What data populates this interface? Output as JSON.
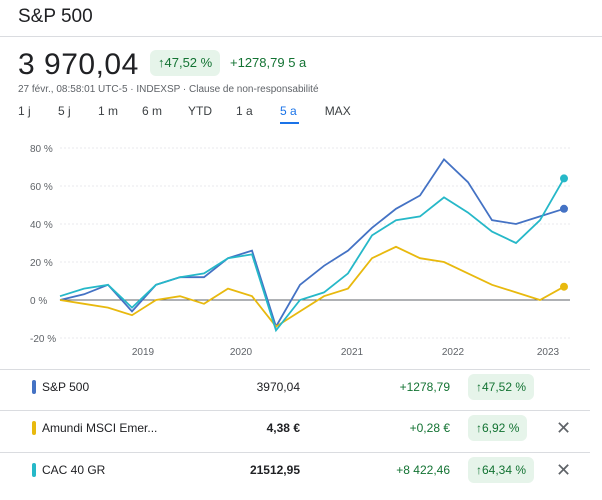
{
  "header": {
    "title": "S&P 500"
  },
  "quote": {
    "price": "3 970,04",
    "pct_change": "↑47,52 %",
    "abs_change": "+1278,79 5 a",
    "meta": "27 févr., 08:58:01 UTC-5 · INDEXSP · Clause de non-responsabilité"
  },
  "tabs": [
    "1 j",
    "5 j",
    "1 m",
    "6 m",
    "YTD",
    "1 a",
    "5 a",
    "MAX"
  ],
  "active_tab": "5 a",
  "colors": {
    "sp500": "#4472c4",
    "amundi": "#e8b90e",
    "cac": "#26b8c8",
    "green": "#137333",
    "pill": "#e6f4ea"
  },
  "chart_data": {
    "type": "line",
    "x": [
      "2018-03",
      "2018-06",
      "2018-09",
      "2018-12",
      "2019-03",
      "2019-06",
      "2019-09",
      "2019-12",
      "2020-02",
      "2020-03",
      "2020-06",
      "2020-09",
      "2020-12",
      "2021-03",
      "2021-06",
      "2021-09",
      "2021-12",
      "2022-03",
      "2022-06",
      "2022-09",
      "2022-12",
      "2023-02"
    ],
    "x_ticks": [
      "2019",
      "2020",
      "2021",
      "2022",
      "2023"
    ],
    "y_ticks": [
      "80 %",
      "60 %",
      "40 %",
      "20 %",
      "0 %",
      "-20 %"
    ],
    "ylim": [
      -20,
      80
    ],
    "series": [
      {
        "name": "S&P 500",
        "values": [
          0,
          3,
          8,
          -6,
          8,
          12,
          12,
          22,
          26,
          -14,
          8,
          18,
          26,
          38,
          48,
          55,
          74,
          62,
          42,
          40,
          44,
          48
        ]
      },
      {
        "name": "Amundi MSCI Emer...",
        "values": [
          0,
          -2,
          -4,
          -8,
          0,
          2,
          -2,
          6,
          2,
          -14,
          -6,
          2,
          6,
          22,
          28,
          22,
          20,
          14,
          8,
          4,
          0,
          7
        ]
      },
      {
        "name": "CAC 40 GR",
        "values": [
          2,
          6,
          8,
          -4,
          8,
          12,
          14,
          22,
          24,
          -16,
          0,
          4,
          14,
          34,
          42,
          44,
          54,
          46,
          36,
          30,
          42,
          64
        ]
      }
    ]
  },
  "rows": [
    {
      "name": "S&P 500",
      "value": "3970,04",
      "change": "+1278,79",
      "pct": "↑47,52 %"
    },
    {
      "name": "Amundi MSCI Emer...",
      "value": "4,38 €",
      "change": "+0,28 €",
      "pct": "↑6,92 %"
    },
    {
      "name": "CAC 40 GR",
      "value": "21512,95",
      "change": "+8 422,46",
      "pct": "↑64,34 %"
    }
  ]
}
